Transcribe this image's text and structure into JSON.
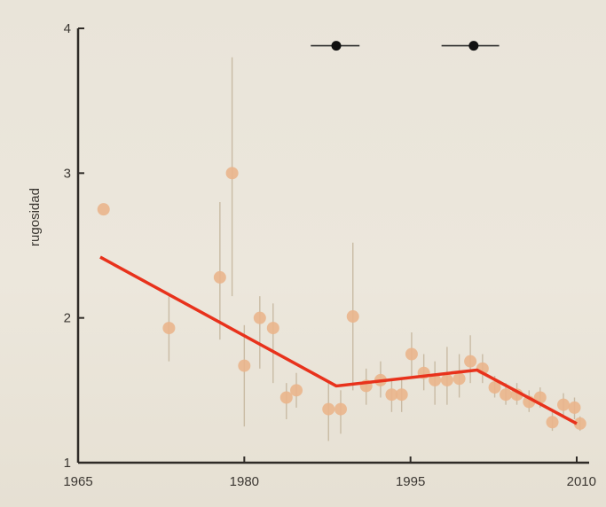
{
  "chart_data": {
    "type": "scatter",
    "xlabel": "",
    "ylabel": "rugosidad",
    "xlim": [
      1965,
      2010
    ],
    "ylim": [
      1,
      4
    ],
    "x_ticks": [
      "1965",
      "1980",
      "1995",
      "2010"
    ],
    "y_ticks": [
      "1",
      "2",
      "3",
      "4"
    ],
    "grid": false,
    "points": [
      {
        "x": 1967.3,
        "y": 2.75,
        "lo": 2.75,
        "hi": 2.75
      },
      {
        "x": 1973.2,
        "y": 1.93,
        "lo": 1.7,
        "hi": 2.15
      },
      {
        "x": 1977.8,
        "y": 2.28,
        "lo": 1.85,
        "hi": 2.8
      },
      {
        "x": 1978.9,
        "y": 3.0,
        "lo": 2.15,
        "hi": 3.8
      },
      {
        "x": 1980.0,
        "y": 1.67,
        "lo": 1.25,
        "hi": 1.95
      },
      {
        "x": 1981.4,
        "y": 2.0,
        "lo": 1.65,
        "hi": 2.15
      },
      {
        "x": 1982.6,
        "y": 1.93,
        "lo": 1.55,
        "hi": 2.1
      },
      {
        "x": 1983.8,
        "y": 1.45,
        "lo": 1.3,
        "hi": 1.55
      },
      {
        "x": 1984.7,
        "y": 1.5,
        "lo": 1.38,
        "hi": 1.62
      },
      {
        "x": 1987.6,
        "y": 1.37,
        "lo": 1.15,
        "hi": 1.55
      },
      {
        "x": 1988.7,
        "y": 1.37,
        "lo": 1.2,
        "hi": 1.5
      },
      {
        "x": 1989.8,
        "y": 2.01,
        "lo": 1.5,
        "hi": 2.52
      },
      {
        "x": 1991.0,
        "y": 1.53,
        "lo": 1.4,
        "hi": 1.65
      },
      {
        "x": 1992.3,
        "y": 1.57,
        "lo": 1.45,
        "hi": 1.7
      },
      {
        "x": 1993.3,
        "y": 1.47,
        "lo": 1.35,
        "hi": 1.58
      },
      {
        "x": 1994.2,
        "y": 1.47,
        "lo": 1.35,
        "hi": 1.58
      },
      {
        "x": 1995.1,
        "y": 1.75,
        "lo": 1.6,
        "hi": 1.9
      },
      {
        "x": 1996.2,
        "y": 1.62,
        "lo": 1.5,
        "hi": 1.75
      },
      {
        "x": 1997.2,
        "y": 1.57,
        "lo": 1.4,
        "hi": 1.7
      },
      {
        "x": 1998.3,
        "y": 1.57,
        "lo": 1.4,
        "hi": 1.8
      },
      {
        "x": 1999.4,
        "y": 1.58,
        "lo": 1.45,
        "hi": 1.75
      },
      {
        "x": 2000.4,
        "y": 1.7,
        "lo": 1.55,
        "hi": 1.88
      },
      {
        "x": 2001.5,
        "y": 1.65,
        "lo": 1.55,
        "hi": 1.75
      },
      {
        "x": 2002.6,
        "y": 1.52,
        "lo": 1.45,
        "hi": 1.6
      },
      {
        "x": 2003.6,
        "y": 1.47,
        "lo": 1.4,
        "hi": 1.55
      },
      {
        "x": 2004.6,
        "y": 1.47,
        "lo": 1.4,
        "hi": 1.55
      },
      {
        "x": 2005.7,
        "y": 1.42,
        "lo": 1.35,
        "hi": 1.5
      },
      {
        "x": 2006.7,
        "y": 1.45,
        "lo": 1.38,
        "hi": 1.52
      },
      {
        "x": 2007.8,
        "y": 1.28,
        "lo": 1.22,
        "hi": 1.35
      },
      {
        "x": 2008.8,
        "y": 1.4,
        "lo": 1.33,
        "hi": 1.48
      },
      {
        "x": 2009.8,
        "y": 1.38,
        "lo": 1.3,
        "hi": 1.45
      },
      {
        "x": 2010.3,
        "y": 1.27,
        "lo": 1.22,
        "hi": 1.32
      }
    ],
    "fit_line": {
      "color": "#e8321c",
      "x": [
        1967.0,
        1988.3,
        2001.0,
        2010.0
      ],
      "y": [
        2.42,
        1.53,
        1.64,
        1.27
      ]
    },
    "breakpoints": [
      {
        "x": 1988.3,
        "x_lo": 1986.0,
        "x_hi": 1990.4,
        "y": 3.88
      },
      {
        "x": 2000.7,
        "x_lo": 1997.8,
        "x_hi": 2003.0,
        "y": 3.88
      }
    ],
    "colors": {
      "point": "#eab58c",
      "errorbar": "#c9bba4",
      "axis": "#2f2b27",
      "breakpoint": "#111111",
      "breakpoint_ci": "#2c2c2c"
    }
  }
}
